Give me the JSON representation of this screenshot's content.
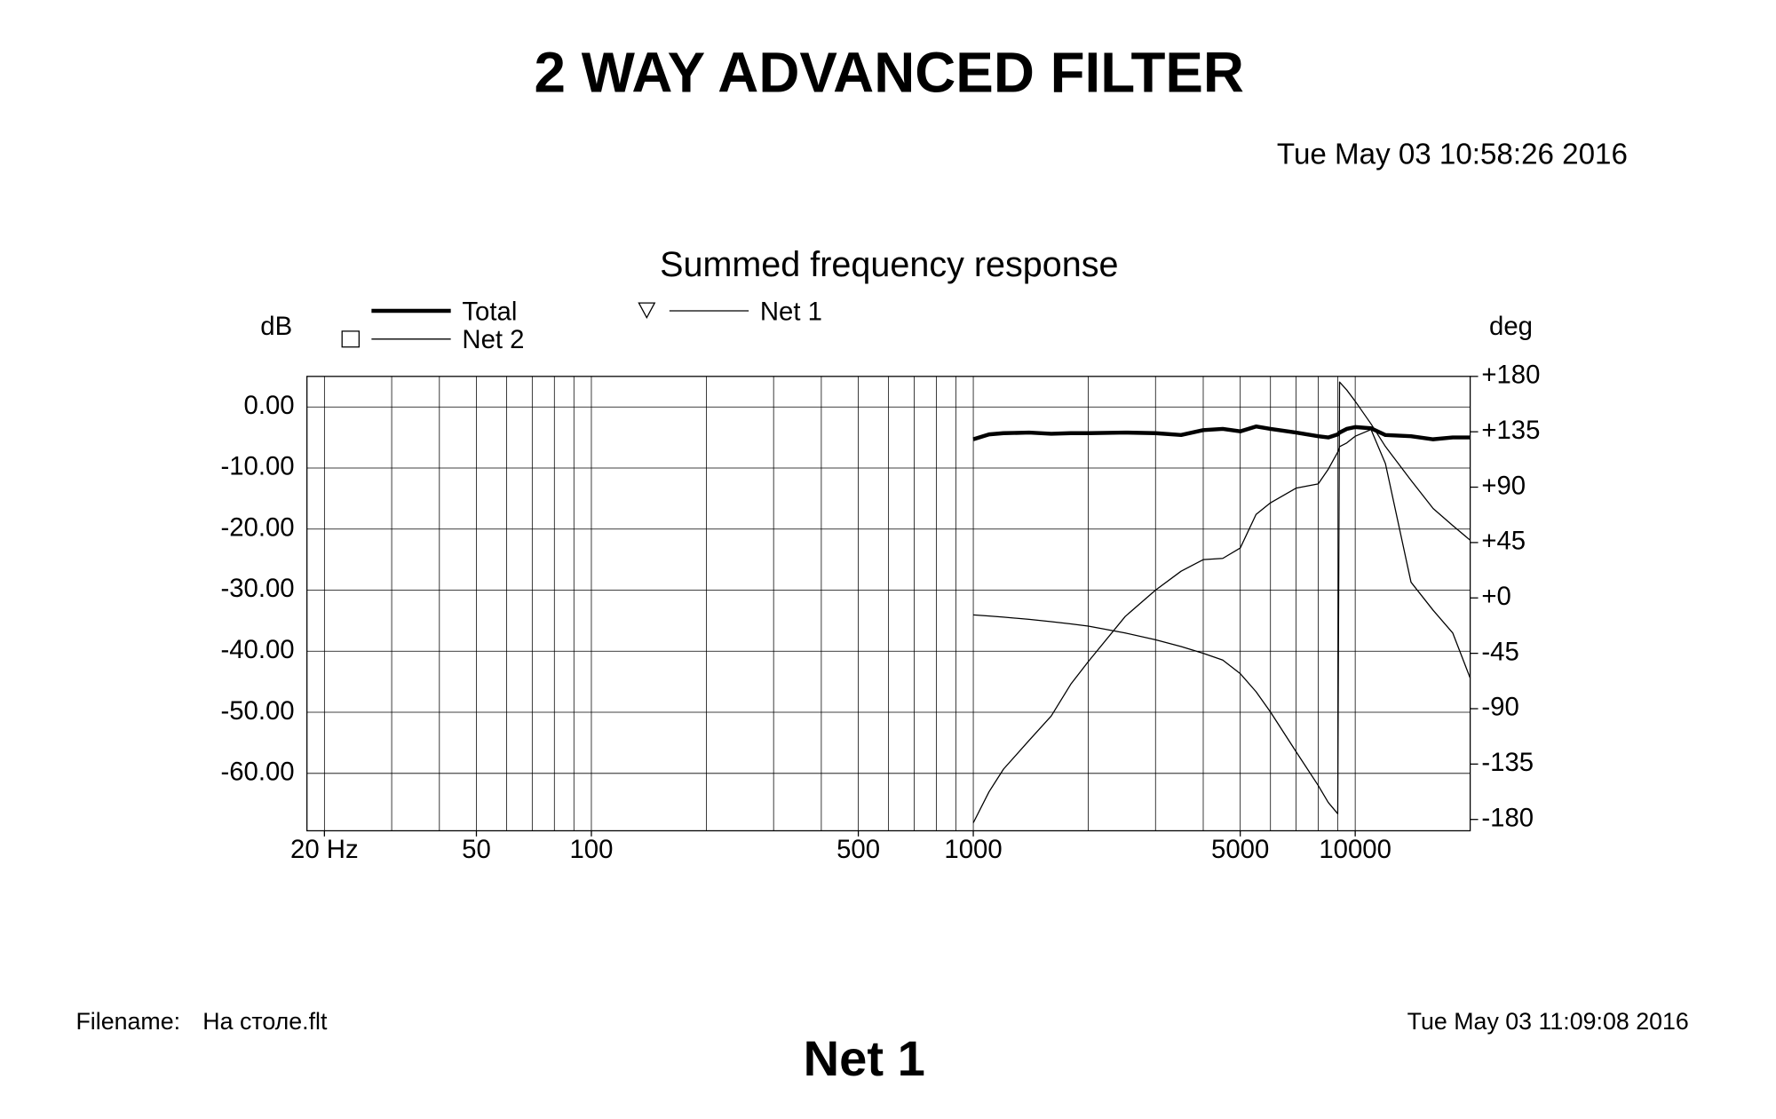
{
  "chart_data": {
    "type": "line",
    "title": "2 WAY ADVANCED FILTER",
    "date": "Tue May 03 10:58:26 2016",
    "subtitle": "Summed frequency response",
    "ylabel": "dB",
    "y2label": "deg",
    "log_x": true,
    "grid": true,
    "xlim": [
      18,
      20000
    ],
    "ylim": [
      -69.4,
      5
    ],
    "y2lim": [
      -189.2,
      180
    ],
    "xticks": [
      {
        "value": 20,
        "label": "20 Hz"
      },
      50,
      100,
      500,
      1000,
      5000,
      10000
    ],
    "xgrid": [
      20,
      30,
      40,
      50,
      60,
      70,
      80,
      90,
      100,
      200,
      300,
      400,
      500,
      600,
      700,
      800,
      900,
      1000,
      2000,
      3000,
      4000,
      5000,
      6000,
      7000,
      8000,
      9000,
      10000,
      20000
    ],
    "yticks": [
      {
        "value": 0,
        "label": "0.00"
      },
      {
        "value": -10,
        "label": "-10.00"
      },
      {
        "value": -20,
        "label": "-20.00"
      },
      {
        "value": -30,
        "label": "-30.00"
      },
      {
        "value": -40,
        "label": "-40.00"
      },
      {
        "value": -50,
        "label": "-50.00"
      },
      {
        "value": -60,
        "label": "-60.00"
      }
    ],
    "y2ticks": [
      {
        "value": 180,
        "label": "+180"
      },
      {
        "value": 135,
        "label": "+135"
      },
      {
        "value": 90,
        "label": "+90"
      },
      {
        "value": 45,
        "label": "+45"
      },
      {
        "value": 0,
        "label": "+0"
      },
      -45,
      -90,
      -135,
      -180
    ],
    "x": [
      1000,
      1100,
      1200,
      1400,
      1600,
      1800,
      2000,
      2500,
      3000,
      3500,
      4000,
      4500,
      5000,
      5500,
      6000,
      7000,
      8000,
      8500,
      9000,
      9100,
      9500,
      10000,
      11000,
      12000,
      14000,
      16000,
      18000,
      20000
    ],
    "series": [
      {
        "name": "Total",
        "color": "#000000",
        "line_width": 3.5,
        "values": [
          -5.3,
          -4.5,
          -4.3,
          -4.2,
          -4.4,
          -4.3,
          -4.3,
          -4.2,
          -4.3,
          -4.6,
          -3.8,
          -3.6,
          -4.0,
          -3.2,
          -3.6,
          -4.2,
          -4.8,
          -5.0,
          -4.5,
          -4.2,
          -3.6,
          -3.3,
          -3.5,
          -4.6,
          -4.8,
          -5.3,
          -5.0,
          -5.0
        ]
      },
      {
        "name": "Net 2",
        "color": "#000000",
        "line_width": 1,
        "marker": "square",
        "values": [
          null,
          null,
          null,
          null,
          null,
          null,
          null,
          null,
          null,
          null,
          null,
          null,
          null,
          null,
          null,
          null,
          null,
          null,
          null,
          null,
          null,
          null,
          null,
          null,
          null,
          null,
          null,
          null
        ]
      },
      {
        "name": "Net 1",
        "color": "#000000",
        "line_width": 1,
        "marker": "triangle",
        "values": [
          -68.1,
          -63,
          -59.3,
          -54.6,
          -50.6,
          -45.4,
          -41.7,
          -34.3,
          -30,
          -26.9,
          -25,
          -24.8,
          -23.1,
          -17.6,
          -15.7,
          -13.3,
          -12.6,
          -10.2,
          -7.4,
          -6.5,
          -5.9,
          -4.8,
          -3.7,
          -9.3,
          -28.7,
          -33.3,
          -37,
          -44.4
        ]
      },
      {
        "color": "#000000",
        "line_width": 1,
        "axis": "y2",
        "values": [
          -13.8,
          -14.7,
          -15.6,
          -17.4,
          -19.3,
          -21.1,
          -22.9,
          -28.5,
          -34,
          -39.5,
          -45,
          -50.5,
          -61.5,
          -76.2,
          -92.7,
          -124.9,
          -152.4,
          -166.2,
          -175.4,
          175.4,
          169,
          159.8,
          141.4,
          123,
          95.5,
          72.6,
          58.8,
          46.9
        ]
      }
    ],
    "filename_label": "Filename:",
    "filename": "На столе.flt",
    "footer_date": "Tue May 03 11:09:08 2016",
    "footer_title": "Net 1"
  }
}
